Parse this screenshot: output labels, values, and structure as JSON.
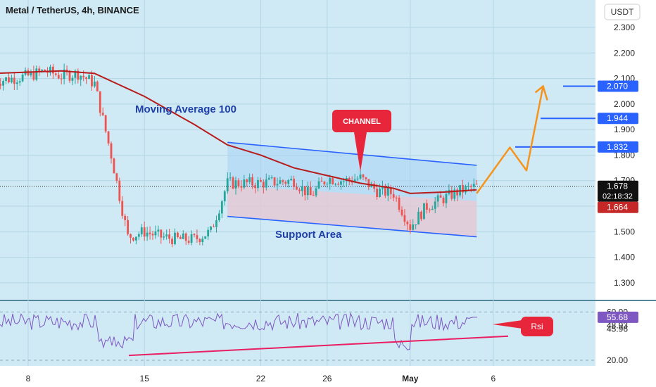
{
  "header": {
    "title": "Metal / TetherUS, 4h, BINANCE",
    "currency": "USDT"
  },
  "colors": {
    "background": "#cfeaf5",
    "up": "#26a69a",
    "down": "#ef5350",
    "ma": "#b71c1c",
    "channel_line": "#2962ff",
    "projection": "#f7931a",
    "rsi_line": "#7e57c2",
    "rsi_trend": "#e91e63"
  },
  "annotations": {
    "moving_average": "Moving Average 100",
    "support_area": "Support Area",
    "channel": "CHANNEL",
    "rsi": "Rsi"
  },
  "price_scale": {
    "ticks": [
      "2.300",
      "2.200",
      "2.100",
      "2.000",
      "1.900",
      "1.800",
      "1.700",
      "1.500",
      "1.400",
      "1.300"
    ],
    "last_price": "1.678",
    "countdown": "02:18:32",
    "ma_value": "1.664",
    "targets": [
      "2.070",
      "1.944",
      "1.832"
    ]
  },
  "rsi_scale": {
    "ticks": [
      "60.00",
      "48.93",
      "45.96",
      "20.00"
    ],
    "value": "55.68"
  },
  "time_axis": [
    "8",
    "15",
    "22",
    "26",
    "May",
    "6"
  ],
  "chart_data": [
    {
      "type": "line",
      "name": "price",
      "x": [
        "8",
        "15",
        "22",
        "26",
        "May",
        "6"
      ],
      "points": [
        [
          "Apr 6",
          2.09
        ],
        [
          "Apr 8",
          2.11
        ],
        [
          "Apr 9",
          2.13
        ],
        [
          "Apr 10",
          2.11
        ],
        [
          "Apr 11",
          2.12
        ],
        [
          "Apr 12",
          2.08
        ],
        [
          "Apr 13",
          1.8
        ],
        [
          "Apr 14",
          1.48
        ],
        [
          "Apr 15",
          1.5
        ],
        [
          "Apr 16",
          1.48
        ],
        [
          "Apr 17",
          1.47
        ],
        [
          "Apr 18",
          1.47
        ],
        [
          "Apr 19",
          1.5
        ],
        [
          "Apr 20",
          1.69
        ],
        [
          "Apr 22",
          1.69
        ],
        [
          "Apr 24",
          1.7
        ],
        [
          "Apr 25",
          1.64
        ],
        [
          "Apr 26",
          1.71
        ],
        [
          "Apr 27",
          1.7
        ],
        [
          "Apr 28",
          1.71
        ],
        [
          "Apr 29",
          1.66
        ],
        [
          "Apr 30",
          1.65
        ],
        [
          "May 1",
          1.52
        ],
        [
          "May 2",
          1.6
        ],
        [
          "May 3",
          1.63
        ],
        [
          "May 4",
          1.66
        ],
        [
          "May 5",
          1.678
        ]
      ],
      "ma_100": [
        [
          "Apr 6",
          2.12
        ],
        [
          "Apr 10",
          2.13
        ],
        [
          "Apr 12",
          2.12
        ],
        [
          "Apr 15",
          2.03
        ],
        [
          "Apr 18",
          1.92
        ],
        [
          "Apr 20",
          1.84
        ],
        [
          "Apr 22",
          1.8
        ],
        [
          "Apr 24",
          1.75
        ],
        [
          "Apr 26",
          1.72
        ],
        [
          "Apr 28",
          1.69
        ],
        [
          "Apr 30",
          1.67
        ],
        [
          "May 1",
          1.65
        ],
        [
          "May 3",
          1.655
        ],
        [
          "May 5",
          1.664
        ]
      ],
      "channel": {
        "upper": [
          [
            "Apr 20",
            1.85
          ],
          [
            "May 5",
            1.76
          ]
        ],
        "lower": [
          [
            "Apr 20",
            1.56
          ],
          [
            "May 5",
            1.48
          ]
        ]
      },
      "projection": [
        [
          "May 5",
          1.65
        ],
        [
          "May 7",
          1.83
        ],
        [
          "May 8",
          1.74
        ],
        [
          "May 9",
          2.07
        ]
      ],
      "levels": [
        2.07,
        1.944,
        1.832
      ],
      "ylim": [
        1.25,
        2.38
      ]
    },
    {
      "type": "line",
      "name": "RSI",
      "levels": [
        60.0,
        48.93,
        45.96,
        20.0
      ],
      "current": 55.68
    }
  ]
}
